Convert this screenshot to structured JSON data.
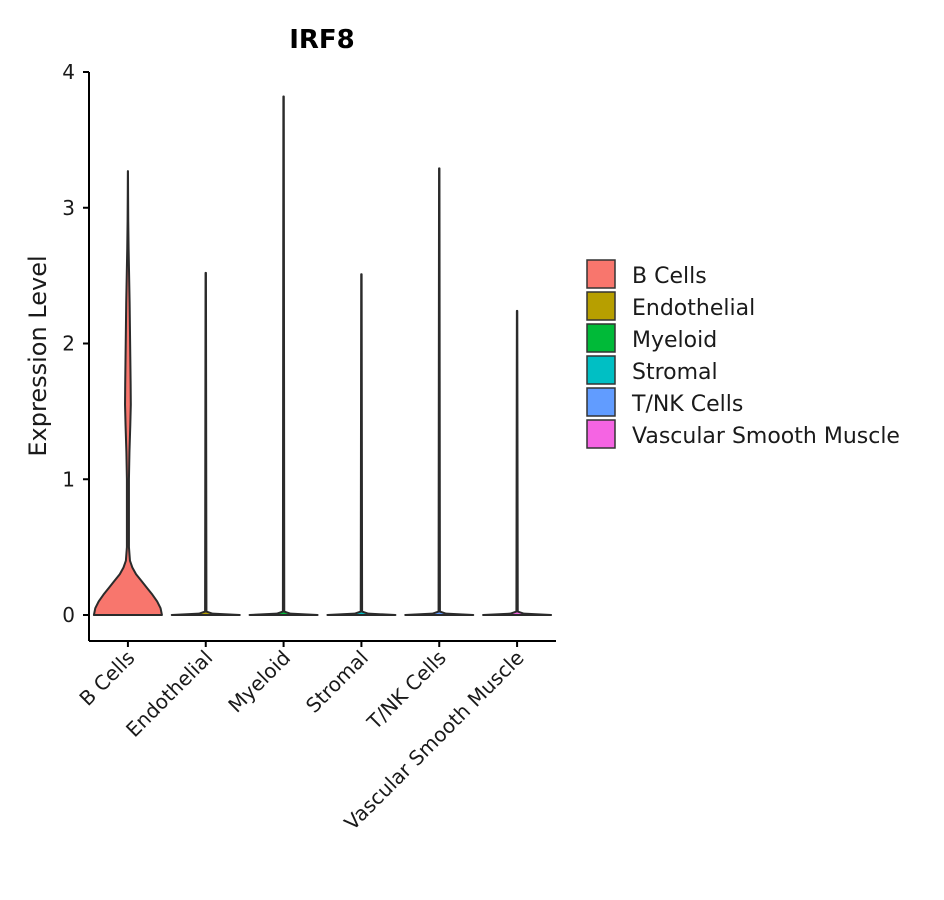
{
  "chart_data": {
    "type": "violin",
    "title": "IRF8",
    "xlabel": "",
    "ylabel": "Expression Level",
    "ylim": [
      -0.2,
      4.05
    ],
    "yticks": [
      0,
      1,
      2,
      3,
      4
    ],
    "categories": [
      "B Cells",
      "Endothelial",
      "Myeloid",
      "Stromal",
      "T/NK Cells",
      "Vascular Smooth Muscle"
    ],
    "max_values": [
      3.27,
      2.52,
      3.82,
      2.51,
      3.29,
      2.24
    ],
    "colors": [
      "#F8766D",
      "#B79F00",
      "#00BA38",
      "#00BFC4",
      "#619CFF",
      "#F564E3"
    ],
    "legend": {
      "position": "right",
      "entries": [
        "B Cells",
        "Endothelial",
        "Myeloid",
        "Stromal",
        "T/NK Cells",
        "Vascular Smooth Muscle"
      ]
    },
    "b_cells_density_profile": [
      [
        0,
        1.0
      ],
      [
        0.05,
        0.96
      ],
      [
        0.1,
        0.86
      ],
      [
        0.15,
        0.72
      ],
      [
        0.2,
        0.56
      ],
      [
        0.25,
        0.4
      ],
      [
        0.3,
        0.24
      ],
      [
        0.35,
        0.13
      ],
      [
        0.4,
        0.06
      ],
      [
        0.5,
        0.03
      ],
      [
        0.8,
        0.03
      ],
      [
        1.0,
        0.03
      ],
      [
        1.2,
        0.045
      ],
      [
        1.4,
        0.07
      ],
      [
        1.55,
        0.085
      ],
      [
        1.7,
        0.08
      ],
      [
        1.9,
        0.07
      ],
      [
        2.1,
        0.06
      ],
      [
        2.3,
        0.05
      ],
      [
        2.5,
        0.035
      ],
      [
        2.7,
        0.02
      ],
      [
        2.9,
        0.01
      ],
      [
        3.1,
        0.005
      ],
      [
        3.27,
        0.002
      ]
    ]
  }
}
